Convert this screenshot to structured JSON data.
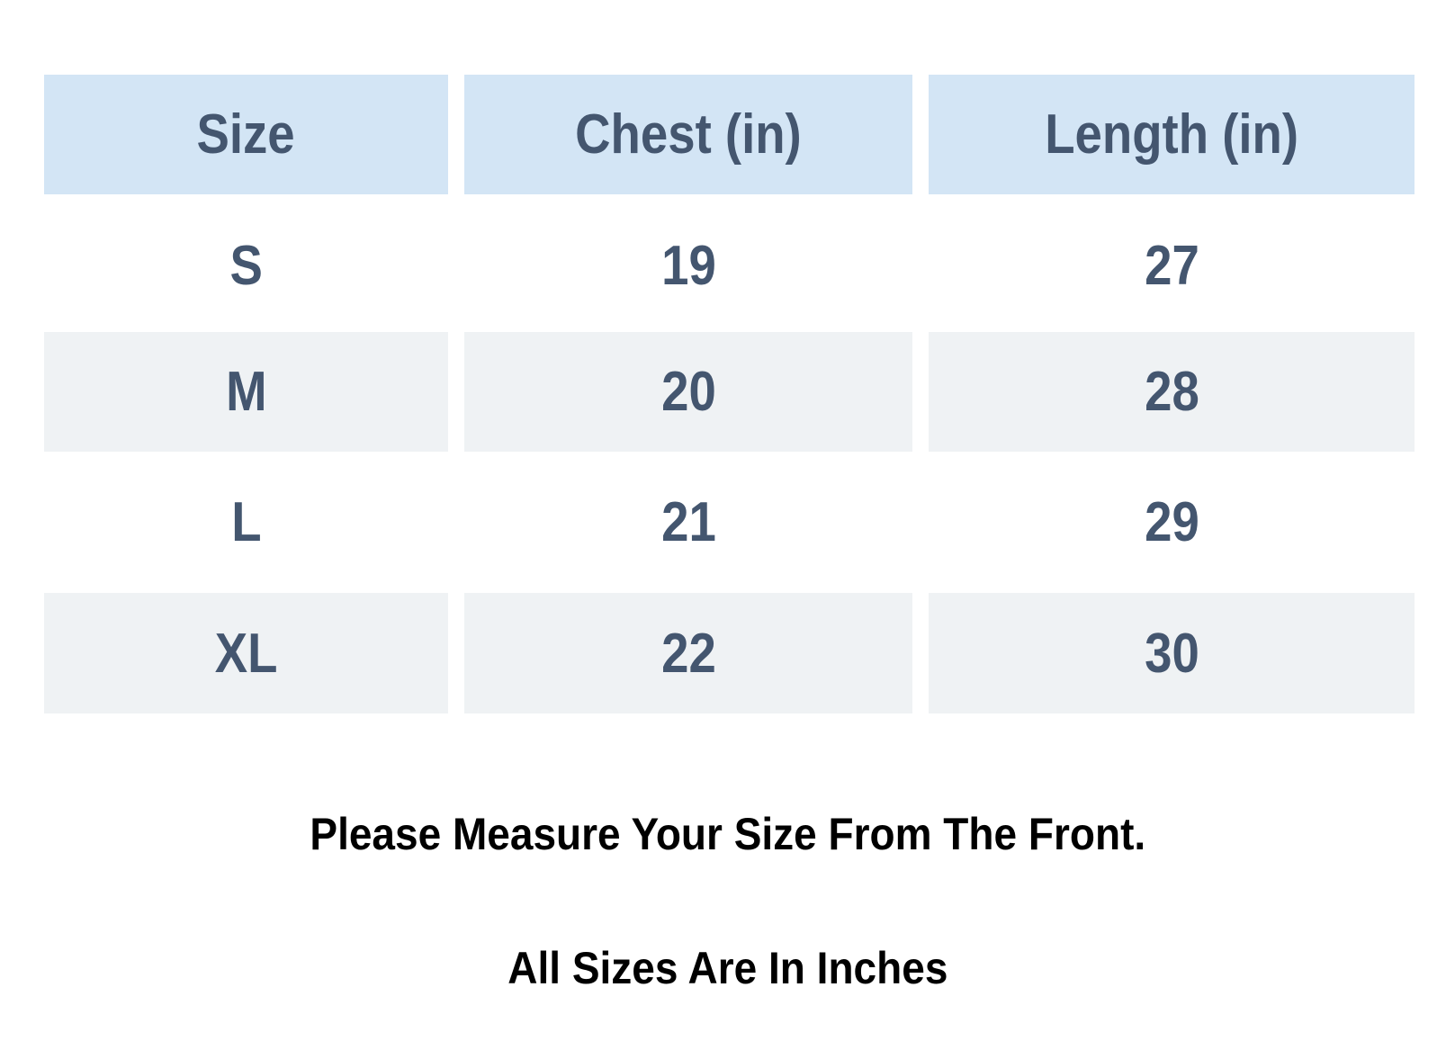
{
  "table": {
    "headers": [
      "Size",
      "Chest (in)",
      "Length (in)"
    ],
    "rows": [
      [
        "S",
        "19",
        "27"
      ],
      [
        "M",
        "20",
        "28"
      ],
      [
        "L",
        "21",
        "29"
      ],
      [
        "XL",
        "22",
        "30"
      ]
    ]
  },
  "notes": {
    "measure": "Please Measure Your Size From The Front.",
    "units": "All Sizes Are In Inches"
  },
  "colors": {
    "header_bg": "#d3e5f5",
    "alt_row_bg": "#eff2f4",
    "cell_text": "#44566f"
  }
}
